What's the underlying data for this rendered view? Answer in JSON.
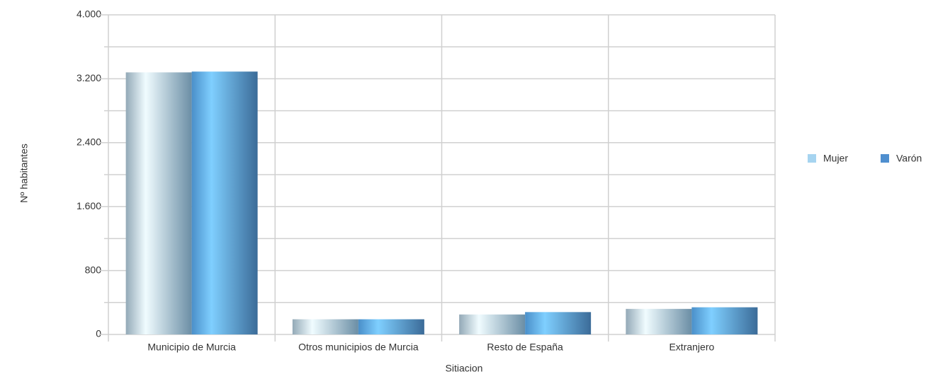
{
  "chart_data": {
    "type": "bar",
    "x_label": "Sitiacion",
    "y_label": "Nº habitantes",
    "categories": [
      "Municipio de Murcia",
      "Otros municipios de Murcia",
      "Resto de España",
      "Extranjero"
    ],
    "series": [
      {
        "name": "Mujer",
        "color": "#a6d4f0",
        "values": [
          3280,
          190,
          250,
          320
        ]
      },
      {
        "name": "Varón",
        "color": "#4f8fcf",
        "values": [
          3290,
          190,
          280,
          340
        ]
      }
    ],
    "ylim": [
      0,
      4000
    ],
    "yticks": [
      0,
      800,
      {
        "value": 1600,
        "label": "1.600"
      },
      {
        "value": 2400,
        "label": "2.400"
      },
      {
        "value": 3200,
        "label": "3.200"
      },
      {
        "value": 4000,
        "label": "4.000"
      }
    ],
    "grid": true,
    "legend": "right"
  }
}
